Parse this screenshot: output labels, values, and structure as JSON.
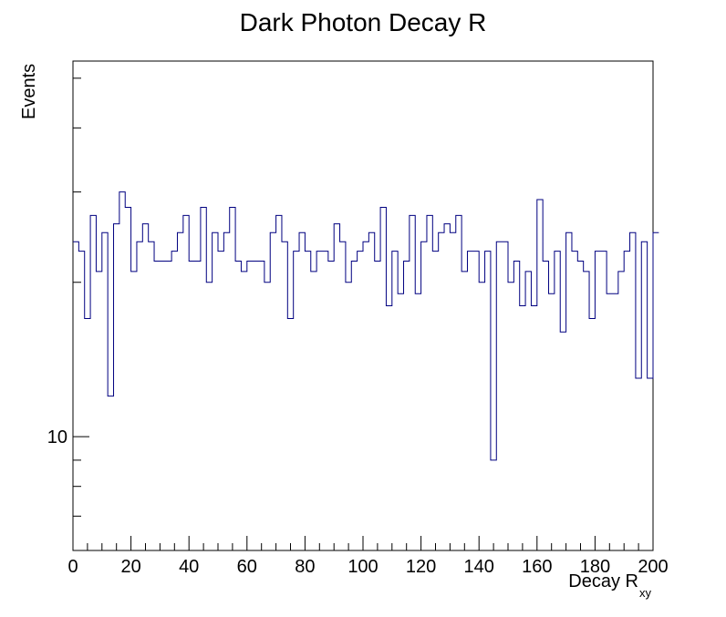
{
  "chart_data": {
    "type": "histogram",
    "title": "Dark Photon Decay R",
    "xlabel_main": "Decay R",
    "xlabel_sub": "xy",
    "ylabel": "Events",
    "xlim": [
      0,
      200
    ],
    "ylim": [
      6,
      54
    ],
    "yscale": "log",
    "x_ticks": [
      0,
      20,
      40,
      60,
      80,
      100,
      120,
      140,
      160,
      180,
      200
    ],
    "y_major_ticks": [
      10
    ],
    "y_minor_ticks": [
      7,
      8,
      9,
      20,
      30,
      40,
      50
    ],
    "grid": false,
    "line_color": "#000080",
    "bin_width": 2,
    "values": [
      24,
      23,
      17,
      27,
      21,
      25,
      12,
      26,
      30,
      28,
      21,
      24,
      26,
      24,
      22,
      22,
      22,
      23,
      25,
      27,
      22,
      22,
      28,
      20,
      25,
      23,
      25,
      28,
      22,
      21,
      22,
      22,
      22,
      20,
      25,
      27,
      24,
      17,
      23,
      25,
      23,
      21,
      23,
      23,
      22,
      26,
      24,
      20,
      22,
      23,
      24,
      25,
      22,
      28,
      18,
      23,
      19,
      22,
      27,
      19,
      24,
      27,
      23,
      25,
      26,
      25,
      27,
      21,
      23,
      23,
      20,
      23,
      9,
      24,
      24,
      20,
      22,
      18,
      21,
      18,
      29,
      22,
      19,
      23,
      16,
      25,
      23,
      22,
      21,
      17,
      23,
      23,
      19,
      19,
      21,
      23,
      25,
      13,
      24,
      13,
      25
    ]
  }
}
